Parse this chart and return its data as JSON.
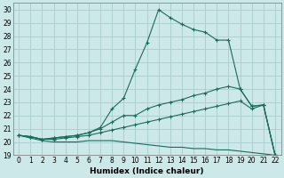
{
  "xlabel": "Humidex (Indice chaleur)",
  "background_color": "#cce8e8",
  "grid_color": "#aacccc",
  "line_color": "#1a6b5a",
  "xlim": [
    -0.5,
    22.5
  ],
  "ylim": [
    19,
    30.5
  ],
  "yticks": [
    19,
    20,
    21,
    22,
    23,
    24,
    25,
    26,
    27,
    28,
    29,
    30
  ],
  "xticks": [
    0,
    1,
    2,
    3,
    4,
    5,
    6,
    7,
    8,
    9,
    10,
    11,
    12,
    13,
    14,
    15,
    16,
    17,
    18,
    19,
    20,
    21,
    22
  ],
  "line1_x": [
    0,
    1,
    2,
    3,
    4,
    5,
    6,
    7,
    8,
    9,
    10,
    11,
    12,
    13,
    14,
    15,
    16,
    17,
    18,
    19,
    20,
    21,
    22
  ],
  "line1_y": [
    20.5,
    20.4,
    20.2,
    20.3,
    20.4,
    20.5,
    20.7,
    21.1,
    22.5,
    23.3,
    25.5,
    27.5,
    30.0,
    29.4,
    28.9,
    28.5,
    28.3,
    27.7,
    27.7,
    24.0,
    22.7,
    22.8,
    19.0
  ],
  "line2_x": [
    0,
    1,
    2,
    3,
    4,
    5,
    6,
    7,
    8,
    9,
    10,
    11,
    12,
    13,
    14,
    15,
    16,
    17,
    18,
    19,
    20,
    21,
    22
  ],
  "line2_y": [
    20.5,
    20.4,
    20.2,
    20.3,
    20.4,
    20.5,
    20.7,
    21.0,
    21.5,
    22.0,
    22.0,
    22.5,
    22.8,
    23.0,
    23.2,
    23.5,
    23.7,
    24.0,
    24.2,
    24.0,
    22.7,
    22.8,
    19.0
  ],
  "line3_x": [
    0,
    1,
    2,
    3,
    4,
    5,
    6,
    7,
    8,
    9,
    10,
    11,
    12,
    13,
    14,
    15,
    16,
    17,
    18,
    19,
    20,
    21,
    22
  ],
  "line3_y": [
    20.5,
    20.4,
    20.2,
    20.2,
    20.3,
    20.4,
    20.5,
    20.7,
    20.9,
    21.1,
    21.3,
    21.5,
    21.7,
    21.9,
    22.1,
    22.3,
    22.5,
    22.7,
    22.9,
    23.1,
    22.5,
    22.8,
    19.0
  ],
  "line4_x": [
    0,
    1,
    2,
    3,
    4,
    5,
    6,
    7,
    8,
    9,
    10,
    11,
    12,
    13,
    14,
    15,
    16,
    17,
    18,
    19,
    20,
    21,
    22
  ],
  "line4_y": [
    20.5,
    20.3,
    20.1,
    20.0,
    20.0,
    20.0,
    20.1,
    20.1,
    20.1,
    20.0,
    19.9,
    19.8,
    19.7,
    19.6,
    19.6,
    19.5,
    19.5,
    19.4,
    19.4,
    19.3,
    19.2,
    19.1,
    19.0
  ],
  "marker": "+"
}
